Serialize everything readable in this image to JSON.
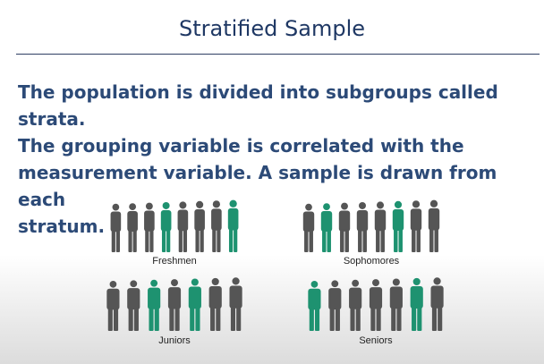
{
  "slide": {
    "title": "Stratified Sample",
    "body_lines": [
      "The population is divided into subgroups called strata.",
      "The grouping variable is correlated with the",
      "measurement variable. A sample is drawn from each",
      "stratum."
    ]
  },
  "colors": {
    "title": "#1f3864",
    "body": "#2c4a77",
    "person_gray": "#555555",
    "person_green": "#1e9270"
  },
  "strata": [
    {
      "label": "Freshmen",
      "people": [
        "gray",
        "gray",
        "gray",
        "green",
        "gray",
        "gray",
        "gray",
        "green"
      ]
    },
    {
      "label": "Sophomores",
      "people": [
        "gray",
        "green",
        "gray",
        "gray",
        "gray",
        "green",
        "gray",
        "gray"
      ]
    },
    {
      "label": "Juniors",
      "people": [
        "gray",
        "gray",
        "green",
        "gray",
        "green",
        "gray",
        "gray"
      ]
    },
    {
      "label": "Seniors",
      "people": [
        "green",
        "gray",
        "gray",
        "gray",
        "gray",
        "green",
        "gray"
      ]
    }
  ]
}
